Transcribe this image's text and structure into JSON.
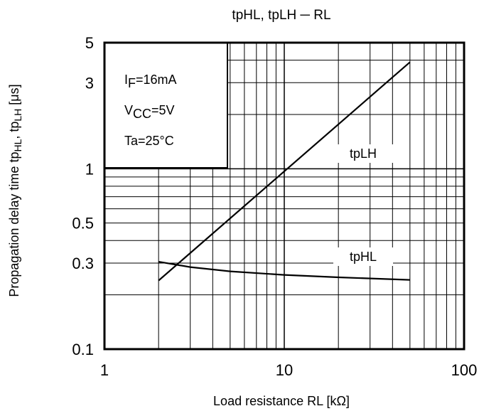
{
  "chart_data": {
    "type": "line",
    "title": "tpHL, tpLH  ─  RL",
    "xlabel": "Load resistance RL [kΩ]",
    "ylabel": {
      "prefix": "Propagation delay time   tp",
      "sub1": "HL",
      "mid": ", tp",
      "sub2": "LH",
      "suffix": " [μs]"
    },
    "x_scale": "log",
    "y_scale": "log",
    "xlim": [
      1,
      100
    ],
    "ylim": [
      0.1,
      5
    ],
    "x_tick_labels": [
      {
        "value": 1,
        "label": "1"
      },
      {
        "value": 10,
        "label": "10"
      },
      {
        "value": 100,
        "label": "100"
      }
    ],
    "y_tick_labels": [
      {
        "value": 5,
        "label": "5"
      },
      {
        "value": 3,
        "label": "3"
      },
      {
        "value": 1,
        "label": "1"
      },
      {
        "value": 0.5,
        "label": "0.5"
      },
      {
        "value": 0.3,
        "label": "0.3"
      },
      {
        "value": 0.1,
        "label": "0.1"
      }
    ],
    "grid": true,
    "conditions": [
      {
        "main": "I",
        "sub": "F",
        "rest": "=16mA"
      },
      {
        "main": "V",
        "sub": "CC",
        "rest": "=5V"
      },
      {
        "main": "Ta=25°C",
        "sub": "",
        "rest": ""
      }
    ],
    "series": [
      {
        "name": "tpLH",
        "x": [
          2,
          50
        ],
        "y": [
          0.24,
          3.9
        ]
      },
      {
        "name": "tpHL",
        "x": [
          2,
          3,
          5,
          10,
          20,
          50
        ],
        "y": [
          0.305,
          0.285,
          0.27,
          0.258,
          0.25,
          0.242
        ]
      }
    ]
  }
}
